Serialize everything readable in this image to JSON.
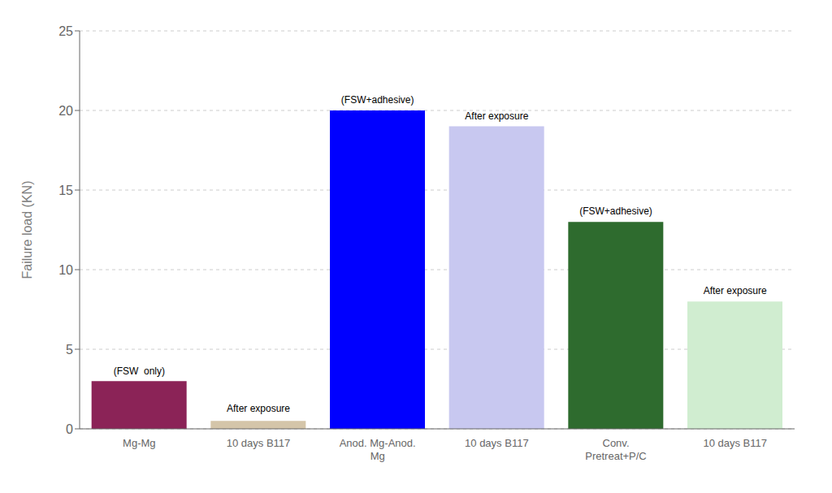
{
  "chart_data": {
    "type": "bar",
    "categories": [
      "Mg-Mg",
      "10 days B117",
      "Anod. Mg-Anod.\nMg",
      "10 days B117",
      "Conv.\nPretreat+P/C",
      "10 days B117"
    ],
    "values": [
      3.0,
      0.5,
      20.0,
      19.0,
      13.0,
      8.0
    ],
    "colors": [
      "#8B2357",
      "#D4C5A9",
      "#0000FF",
      "#C8C8F0",
      "#2E6B2E",
      "#D0EDD0"
    ],
    "ylabel": "Failure load (KN)",
    "ylim": [
      0,
      25
    ],
    "yticks": [
      0,
      5,
      10,
      15,
      20,
      25
    ],
    "grid": true,
    "annotations": [
      {
        "text": "(FSW  only)",
        "x": 0,
        "y": 3.15
      },
      {
        "text": "After exposure",
        "x": 1,
        "y": 0.8
      },
      {
        "text": "(FSW+adhesive)",
        "x": 2,
        "y": 20.2
      },
      {
        "text": "After exposure",
        "x": 3,
        "y": 19.2
      },
      {
        "text": "(FSW+adhesive)",
        "x": 4,
        "y": 13.2
      },
      {
        "text": "After exposure",
        "x": 5,
        "y": 8.2
      }
    ]
  }
}
